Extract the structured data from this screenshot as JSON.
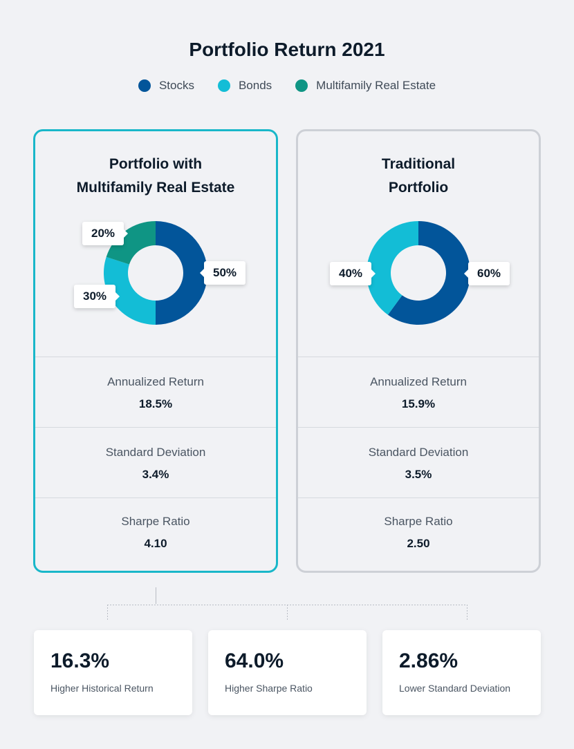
{
  "header": {
    "title": "Portfolio Return 2021"
  },
  "legend": [
    {
      "label": "Stocks",
      "color": "#02559a"
    },
    {
      "label": "Bonds",
      "color": "#13bdd6"
    },
    {
      "label": "Multifamily Real Estate",
      "color": "#0f9584"
    }
  ],
  "cards": [
    {
      "title_line1": "Portfolio with",
      "title_line2": "Multifamily Real Estate",
      "metrics": [
        {
          "label": "Annualized Return",
          "value": "18.5%"
        },
        {
          "label": "Standard Deviation",
          "value": "3.4%"
        },
        {
          "label": "Sharpe Ratio",
          "value": "4.10"
        }
      ]
    },
    {
      "title_line1": "Traditional",
      "title_line2": "Portfolio",
      "metrics": [
        {
          "label": "Annualized Return",
          "value": "15.9%"
        },
        {
          "label": "Standard Deviation",
          "value": "3.5%"
        },
        {
          "label": "Sharpe Ratio",
          "value": "2.50"
        }
      ]
    }
  ],
  "chart_data": [
    {
      "type": "pie",
      "title": "Portfolio with Multifamily Real Estate",
      "categories": [
        "Stocks",
        "Bonds",
        "Multifamily Real Estate"
      ],
      "values": [
        50,
        30,
        20
      ],
      "labels": [
        "50%",
        "30%",
        "20%"
      ],
      "colors": [
        "#02559a",
        "#13bdd6",
        "#0f9584"
      ]
    },
    {
      "type": "pie",
      "title": "Traditional Portfolio",
      "categories": [
        "Stocks",
        "Bonds"
      ],
      "values": [
        60,
        40
      ],
      "labels": [
        "60%",
        "40%"
      ],
      "colors": [
        "#02559a",
        "#13bdd6"
      ]
    }
  ],
  "stats": [
    {
      "value": "16.3%",
      "label": "Higher Historical Return"
    },
    {
      "value": "64.0%",
      "label": "Higher Sharpe Ratio"
    },
    {
      "value": "2.86%",
      "label": "Lower Standard Deviation"
    }
  ]
}
